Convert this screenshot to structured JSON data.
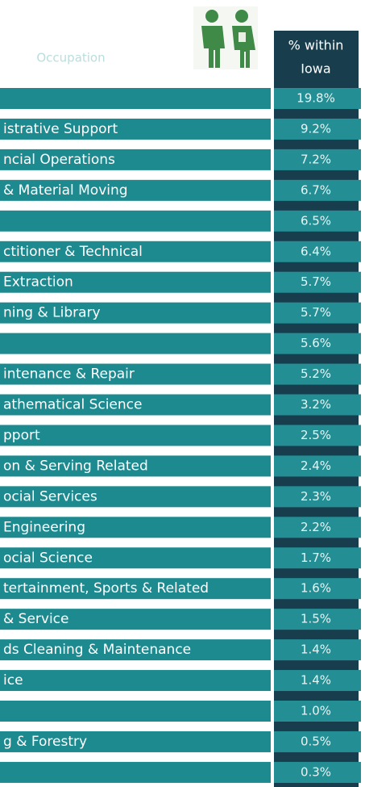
{
  "header": {
    "title": "Occupation",
    "column": [
      "% within",
      "Iowa"
    ]
  },
  "table": {
    "rows": [
      {
        "value": "19.8%"
      },
      {
        "label": "istrative Support",
        "value": "9.2%"
      },
      {
        "label": "ncial Operations",
        "value": "7.2%"
      },
      {
        "label": "& Material Moving",
        "value": "6.7%"
      },
      {
        "value": "6.5%"
      },
      {
        "label": "ctitioner & Technical",
        "value": "6.4%"
      },
      {
        "label": "Extraction",
        "value": "5.7%"
      },
      {
        "label": "ning & Library",
        "value": "5.7%"
      },
      {
        "value": "5.6%"
      },
      {
        "label": "intenance & Repair",
        "value": "5.2%"
      },
      {
        "label": "athematical Science",
        "value": "3.2%"
      },
      {
        "label": "pport",
        "value": "2.5%"
      },
      {
        "label": "on & Serving Related",
        "value": "2.4%"
      },
      {
        "label": "ocial Services",
        "value": "2.3%"
      },
      {
        "label": "Engineering",
        "value": "2.2%"
      },
      {
        "label": "ocial Science",
        "value": "1.7%"
      },
      {
        "label": "tertainment, Sports & Related",
        "value": "1.6%"
      },
      {
        "label": "& Service",
        "value": "1.5%"
      },
      {
        "label": "ds Cleaning & Maintenance",
        "value": "1.4%"
      },
      {
        "label": "ice",
        "value": "1.4%"
      },
      {
        "value": "1.0%"
      },
      {
        "label": "g & Forestry",
        "value": "0.5%"
      },
      {
        "value": "0.3%"
      }
    ]
  }
}
